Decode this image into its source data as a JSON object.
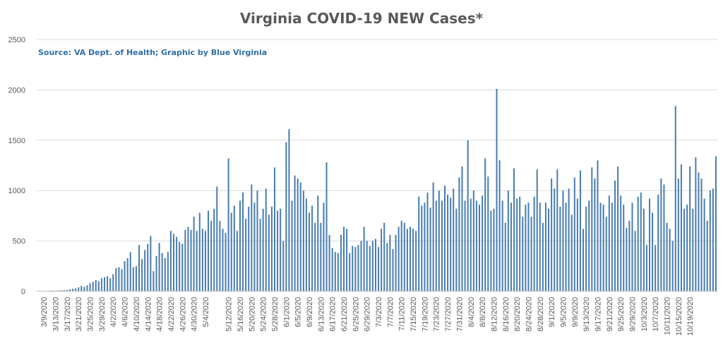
{
  "chart_data": {
    "type": "bar",
    "title": "Virginia COVID-19 NEW Cases*",
    "subtitle": "Source: VA Dept. of Health; Graphic by Blue Virginia",
    "xlabel": "",
    "ylabel": "",
    "ylim": [
      0,
      2500
    ],
    "y_ticks": [
      0,
      500,
      1000,
      1500,
      2000,
      2500
    ],
    "grid": true,
    "legend": "none",
    "bar_color": "#4a7eb0",
    "start_date": "3/7/2020",
    "x_tick_labels": [
      "3/9/2020",
      "3/13/2020",
      "3/17/2020",
      "3/21/2020",
      "3/25/2020",
      "3/29/2020",
      "4/2/2020",
      "4/6/2020",
      "4/10/2020",
      "4/14/2020",
      "4/18/2020",
      "4/22/2020",
      "4/26/2020",
      "4/30/2020",
      "5/4/2020",
      "5/12/2020",
      "5/16/2020",
      "5/20/2020",
      "5/24/2020",
      "5/28/2020",
      "6/1/2020",
      "6/5/2020",
      "6/9/2020",
      "6/13/2020",
      "6/17/2020",
      "6/21/2020",
      "6/25/2020",
      "6/29/2020",
      "7/3/2020",
      "7/7/2020",
      "7/11/2020",
      "7/15/2020",
      "7/19/2020",
      "7/23/2020",
      "7/27/2020",
      "7/31/2020",
      "8/4/2020",
      "8/8/2020",
      "8/12/2020",
      "8/16/2020",
      "8/20/2020",
      "8/24/2020",
      "8/28/2020",
      "9/1/2020",
      "9/5/2020",
      "9/9/2020",
      "9/13/2020",
      "9/17/2020",
      "9/21/2020",
      "9/25/2020",
      "9/29/2020",
      "10/3/2020",
      "10/7/2020",
      "10/11/2020",
      "10/15/2020",
      "10/19/2020"
    ],
    "values": [
      2,
      3,
      4,
      5,
      6,
      8,
      5,
      9,
      10,
      12,
      14,
      20,
      25,
      30,
      40,
      55,
      45,
      60,
      80,
      95,
      110,
      100,
      130,
      140,
      150,
      130,
      170,
      230,
      240,
      220,
      300,
      330,
      390,
      240,
      250,
      460,
      320,
      410,
      470,
      550,
      200,
      350,
      480,
      380,
      330,
      390,
      600,
      570,
      540,
      490,
      470,
      610,
      640,
      610,
      740,
      600,
      780,
      620,
      600,
      800,
      700,
      820,
      1040,
      700,
      620,
      580,
      1320,
      780,
      850,
      600,
      900,
      980,
      720,
      840,
      1060,
      880,
      1000,
      720,
      820,
      1020,
      760,
      840,
      1230,
      800,
      820,
      500,
      1480,
      1610,
      900,
      1150,
      1120,
      1080,
      1000,
      920,
      780,
      850,
      680,
      950,
      680,
      880,
      1280,
      560,
      430,
      390,
      380,
      560,
      640,
      620,
      380,
      450,
      440,
      460,
      500,
      640,
      500,
      450,
      500,
      520,
      440,
      620,
      680,
      480,
      560,
      420,
      560,
      640,
      700,
      680,
      620,
      640,
      620,
      600,
      940,
      850,
      880,
      980,
      830,
      1080,
      900,
      1000,
      900,
      1050,
      960,
      930,
      1020,
      820,
      1130,
      1240,
      900,
      1500,
      920,
      1000,
      900,
      860,
      950,
      1320,
      1140,
      800,
      820,
      2010,
      1300,
      900,
      680,
      1000,
      880,
      1220,
      920,
      940,
      740,
      860,
      880,
      740,
      940,
      1210,
      880,
      680,
      880,
      820,
      1120,
      1020,
      1210,
      840,
      1000,
      880,
      1020,
      760,
      1130,
      920,
      1200,
      620,
      840,
      900,
      1230,
      1120,
      1300,
      880,
      860,
      740,
      950,
      880,
      1100,
      1240,
      950,
      860,
      630,
      700,
      880,
      600,
      940,
      980,
      820,
      460,
      920,
      780,
      460,
      960,
      1120,
      1060,
      680,
      620,
      500,
      1840,
      1120,
      1260,
      820,
      860,
      1240,
      820,
      1330,
      1180,
      1120,
      920,
      700,
      1000,
      1020,
      1340
    ]
  }
}
